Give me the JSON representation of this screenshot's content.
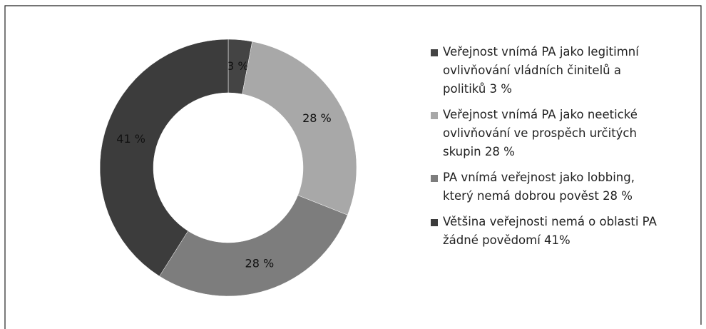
{
  "chart_data": {
    "type": "donut",
    "categories": [
      "Veřejnost vnímá PA jako legitimní ovlivňování vládních činitelů a politiků 3 %",
      "Veřejnost vnímá PA jako neetické ovlivňování ve prospěch určitých skupin 28 %",
      "PA vnímá veřejnost jako lobbing, který nemá dobrou pověst 28 %",
      "Většina veřejnosti nemá o oblasti PA žádné povědomí 41%"
    ],
    "values": [
      3,
      28,
      28,
      41
    ],
    "value_labels": [
      "3 %",
      "28 %",
      "28 %",
      "41 %"
    ],
    "colors": [
      "#444444",
      "#a8a8a8",
      "#7d7d7d",
      "#3c3c3c"
    ],
    "legend": "right"
  }
}
